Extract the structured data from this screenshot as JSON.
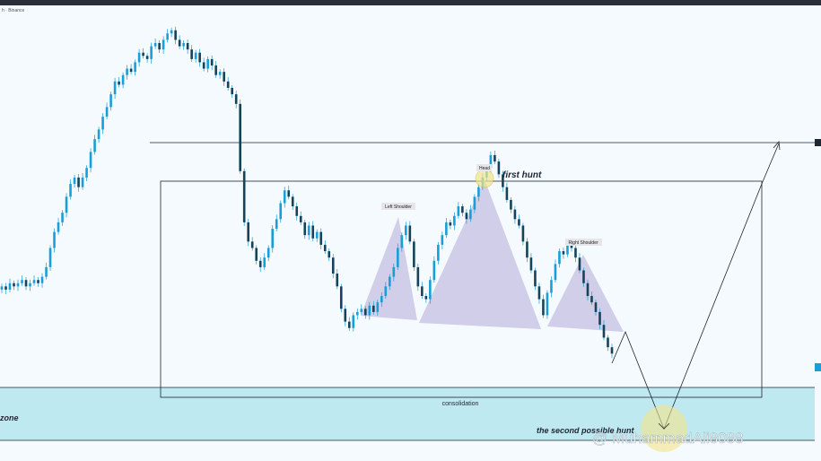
{
  "header": {
    "symbol_label": "h · Binance"
  },
  "annotations": {
    "left_shoulder": "Left Shoulder",
    "head": "Head",
    "right_shoulder": "Right Shoulder",
    "first_hunt": "first hunt",
    "consolidation": "consolidation",
    "zone": "zone",
    "second_hunt": "the second possible hunt",
    "watermark": "@ MuhammadAli8088"
  },
  "colors": {
    "background": "#f4fafd",
    "candle": "#1a9ed8",
    "pattern_fill": "#c9c6e4",
    "zone_fill": "#bfe9f0",
    "line": "#1f2633",
    "highlight": "#f3e58a"
  },
  "chart_data": {
    "type": "candlestick",
    "title": "",
    "xlabel": "",
    "ylabel": "",
    "ylim": [
      0,
      100
    ],
    "pattern": "head-and-shoulders",
    "closes": [
      24,
      23,
      25,
      24,
      25,
      26,
      24,
      25,
      26,
      25,
      27,
      30,
      36,
      41,
      44,
      47,
      52,
      56,
      58,
      55,
      58,
      61,
      66,
      70,
      73,
      77,
      80,
      84,
      88,
      87,
      90,
      92,
      91,
      94,
      97,
      96,
      95,
      99,
      100,
      98,
      101,
      103,
      104,
      101,
      99,
      100,
      98,
      95,
      97,
      94,
      92,
      95,
      93,
      90,
      91,
      88,
      86,
      84,
      81,
      60,
      44,
      38,
      36,
      32,
      30,
      33,
      36,
      42,
      45,
      50,
      54,
      52,
      49,
      46,
      44,
      40,
      43,
      39,
      41,
      37,
      35,
      33,
      28,
      24,
      17,
      13,
      11,
      15,
      16,
      17,
      15,
      18,
      16,
      19,
      21,
      24,
      27,
      30,
      36,
      40,
      43,
      38,
      30,
      24,
      21,
      20,
      26,
      32,
      37,
      40,
      44,
      43,
      46,
      49,
      47,
      45,
      48,
      52,
      55,
      58,
      61,
      65,
      63,
      59,
      55,
      51,
      48,
      45,
      43,
      38,
      33,
      29,
      24,
      20,
      15,
      22,
      26,
      31,
      35,
      34,
      37,
      36,
      33,
      29,
      25,
      21,
      19,
      16,
      12,
      8,
      5,
      3
    ]
  }
}
